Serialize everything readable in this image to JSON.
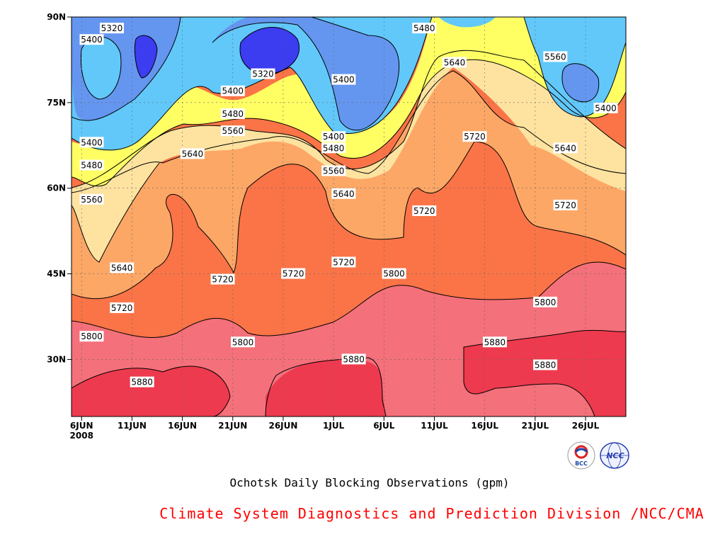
{
  "chart_data": {
    "type": "heatmap",
    "subtype": "filled-contour",
    "title": "Ochotsk Daily Blocking Observations (gpm)",
    "credit": "Climate System Diagnostics and Prediction Division /NCC/CMA",
    "x_ticks": [
      "6JUN",
      "11JUN",
      "16JUN",
      "21JUN",
      "26JUN",
      "1JUL",
      "6JUL",
      "11JUL",
      "16JUL",
      "21JUL",
      "26JUL"
    ],
    "x_year_label": "2008",
    "y_ticks": [
      "30N",
      "45N",
      "60N",
      "75N",
      "90N"
    ],
    "xlim": [
      "2008-06-05",
      "2008-07-30"
    ],
    "ylim": [
      20,
      90
    ],
    "contour_levels": [
      5320,
      5400,
      5480,
      5560,
      5640,
      5720,
      5800,
      5880
    ],
    "contour_labels": [
      {
        "value": 5320,
        "date": "2008-06-09",
        "lat": 88
      },
      {
        "value": 5320,
        "date": "2008-06-24",
        "lat": 80
      },
      {
        "value": 5400,
        "date": "2008-06-07",
        "lat": 86
      },
      {
        "value": 5400,
        "date": "2008-06-21",
        "lat": 77
      },
      {
        "value": 5400,
        "date": "2008-07-02",
        "lat": 79
      },
      {
        "value": 5400,
        "date": "2008-06-07",
        "lat": 68
      },
      {
        "value": 5400,
        "date": "2008-07-01",
        "lat": 69
      },
      {
        "value": 5400,
        "date": "2008-07-28",
        "lat": 74
      },
      {
        "value": 5480,
        "date": "2008-07-10",
        "lat": 88
      },
      {
        "value": 5480,
        "date": "2008-06-21",
        "lat": 73
      },
      {
        "value": 5480,
        "date": "2008-06-07",
        "lat": 64
      },
      {
        "value": 5480,
        "date": "2008-07-01",
        "lat": 67
      },
      {
        "value": 5560,
        "date": "2008-07-23",
        "lat": 83
      },
      {
        "value": 5560,
        "date": "2008-06-21",
        "lat": 70
      },
      {
        "value": 5560,
        "date": "2008-06-07",
        "lat": 58
      },
      {
        "value": 5560,
        "date": "2008-07-01",
        "lat": 63
      },
      {
        "value": 5640,
        "date": "2008-07-13",
        "lat": 82
      },
      {
        "value": 5640,
        "date": "2008-06-17",
        "lat": 66
      },
      {
        "value": 5640,
        "date": "2008-07-02",
        "lat": 59
      },
      {
        "value": 5640,
        "date": "2008-07-24",
        "lat": 67
      },
      {
        "value": 5640,
        "date": "2008-06-10",
        "lat": 46
      },
      {
        "value": 5720,
        "date": "2008-07-15",
        "lat": 69
      },
      {
        "value": 5720,
        "date": "2008-07-10",
        "lat": 56
      },
      {
        "value": 5720,
        "date": "2008-07-24",
        "lat": 57
      },
      {
        "value": 5720,
        "date": "2008-06-10",
        "lat": 39
      },
      {
        "value": 5720,
        "date": "2008-06-20",
        "lat": 44
      },
      {
        "value": 5720,
        "date": "2008-06-27",
        "lat": 45
      },
      {
        "value": 5720,
        "date": "2008-07-02",
        "lat": 47
      },
      {
        "value": 5800,
        "date": "2008-07-07",
        "lat": 45
      },
      {
        "value": 5800,
        "date": "2008-07-22",
        "lat": 40
      },
      {
        "value": 5800,
        "date": "2008-06-07",
        "lat": 34
      },
      {
        "value": 5800,
        "date": "2008-06-22",
        "lat": 33
      },
      {
        "value": 5880,
        "date": "2008-07-03",
        "lat": 30
      },
      {
        "value": 5880,
        "date": "2008-07-17",
        "lat": 33
      },
      {
        "value": 5880,
        "date": "2008-07-22",
        "lat": 29
      },
      {
        "value": 5880,
        "date": "2008-06-12",
        "lat": 26
      }
    ],
    "fill_colors": {
      "below_5320": "#3c3cf0",
      "5320_5400": "#6496f0",
      "5400_5480": "#62c8fa",
      "5480_5560": "#ffff64",
      "5560_5640": "#fee3a0",
      "5640_5720": "#fca766",
      "5720_5800": "#fa7447",
      "5800_5880": "#f4707a",
      "above_5880": "#ee3a4e"
    },
    "grid": true,
    "grid_style": "dotted"
  },
  "logos": {
    "left": {
      "name": "bcc-logo",
      "text": "BCC"
    },
    "right": {
      "name": "ncc-logo",
      "text": "NCC"
    }
  }
}
